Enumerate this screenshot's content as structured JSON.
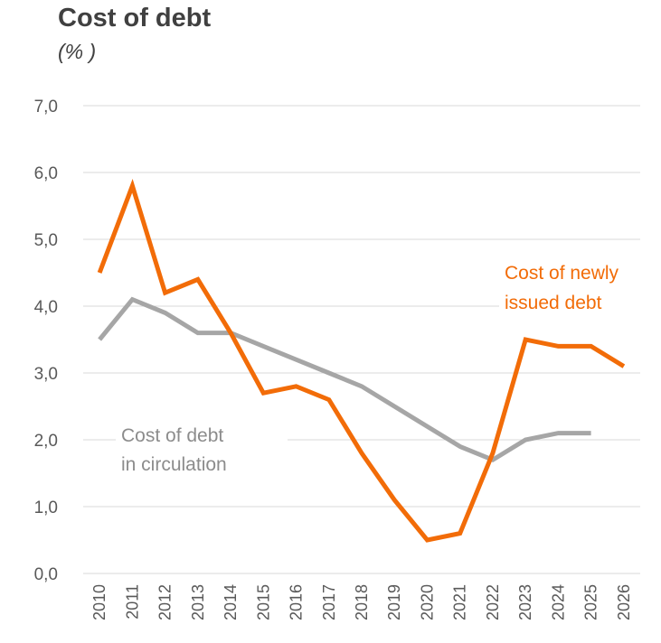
{
  "chart_data": {
    "type": "line",
    "title": "Cost of debt",
    "subtitle": "(% )",
    "xlabel": "",
    "ylabel": "",
    "ylim": [
      0,
      7
    ],
    "grid": true,
    "legend": "none",
    "y_ticks": [
      "0,0",
      "1,0",
      "2,0",
      "3,0",
      "4,0",
      "5,0",
      "6,0",
      "7,0"
    ],
    "x": [
      "2010",
      "2011",
      "2012",
      "2013",
      "2014",
      "2015",
      "2016",
      "2017",
      "2018",
      "2019",
      "2020",
      "2021",
      "2022",
      "2023",
      "2024",
      "2025",
      "2026"
    ],
    "series": [
      {
        "color": "#a6a6a6",
        "values": [
          3.5,
          4.1,
          3.9,
          3.6,
          3.6,
          3.4,
          3.2,
          3.0,
          2.8,
          2.5,
          2.2,
          1.9,
          1.7,
          2.0,
          2.1,
          2.1,
          null
        ]
      },
      {
        "color": "#f26c08",
        "values": [
          4.5,
          5.8,
          4.2,
          4.4,
          3.6,
          2.7,
          2.8,
          2.6,
          1.8,
          1.1,
          0.5,
          0.6,
          1.8,
          3.5,
          3.4,
          3.4,
          3.1
        ]
      }
    ],
    "annotations": {
      "gray_line1": "Cost of debt",
      "gray_line2": "in circulation",
      "orange_line1": "Cost of newly",
      "orange_line2": "issued debt"
    }
  }
}
